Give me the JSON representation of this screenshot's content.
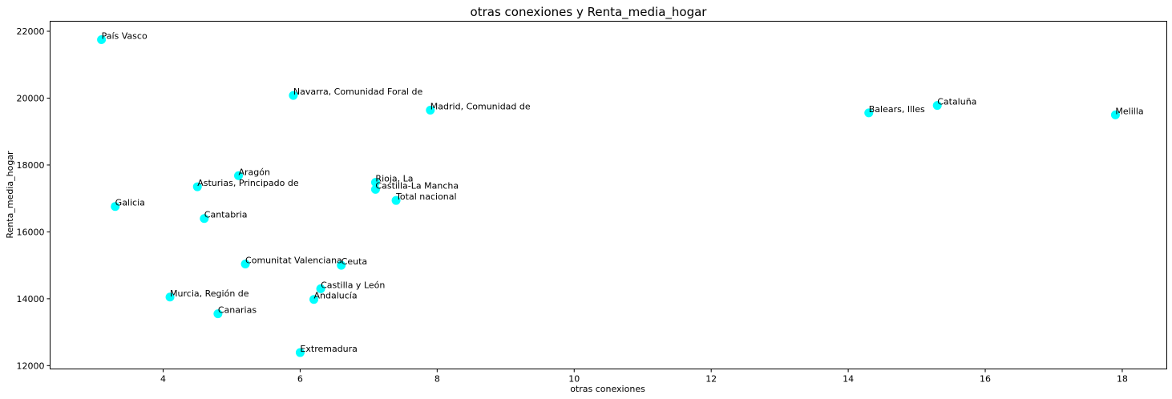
{
  "chart_data": {
    "type": "scatter",
    "title": "otras conexiones y Renta_media_hogar",
    "xlabel": "otras conexiones",
    "ylabel": "Renta_media_hogar",
    "xlim": [
      2.35,
      18.65
    ],
    "ylim": [
      11900,
      22300
    ],
    "xticks": [
      4,
      6,
      8,
      10,
      12,
      14,
      16,
      18
    ],
    "yticks": [
      12000,
      14000,
      16000,
      18000,
      20000,
      22000
    ],
    "grid": false,
    "marker_color": "#00ffff",
    "points": [
      {
        "label": "País Vasco",
        "x": 3.1,
        "y": 21750
      },
      {
        "label": "Navarra, Comunidad Foral de",
        "x": 5.9,
        "y": 20080
      },
      {
        "label": "Madrid, Comunidad de",
        "x": 7.9,
        "y": 19640
      },
      {
        "label": "Cataluña",
        "x": 15.3,
        "y": 19780
      },
      {
        "label": "Balears, Illes",
        "x": 14.3,
        "y": 19560
      },
      {
        "label": "Melilla",
        "x": 17.9,
        "y": 19500
      },
      {
        "label": "Aragón",
        "x": 5.1,
        "y": 17680
      },
      {
        "label": "Asturias, Principado de",
        "x": 4.5,
        "y": 17350
      },
      {
        "label": "Rioja, La",
        "x": 7.1,
        "y": 17480
      },
      {
        "label": "Castilla-La Mancha",
        "x": 7.1,
        "y": 17270
      },
      {
        "label": "Total nacional",
        "x": 7.4,
        "y": 16940
      },
      {
        "label": "Galicia",
        "x": 3.3,
        "y": 16760
      },
      {
        "label": "Cantabria",
        "x": 4.6,
        "y": 16400
      },
      {
        "label": "Comunitat Valenciana",
        "x": 5.2,
        "y": 15040
      },
      {
        "label": "Ceuta",
        "x": 6.6,
        "y": 15000
      },
      {
        "label": "Castilla y León",
        "x": 6.3,
        "y": 14300
      },
      {
        "label": "Murcia, Región de",
        "x": 4.1,
        "y": 14050
      },
      {
        "label": "Andalucía",
        "x": 6.2,
        "y": 13980
      },
      {
        "label": "Canarias",
        "x": 4.8,
        "y": 13550
      },
      {
        "label": "Extremadura",
        "x": 6.0,
        "y": 12390
      }
    ]
  }
}
